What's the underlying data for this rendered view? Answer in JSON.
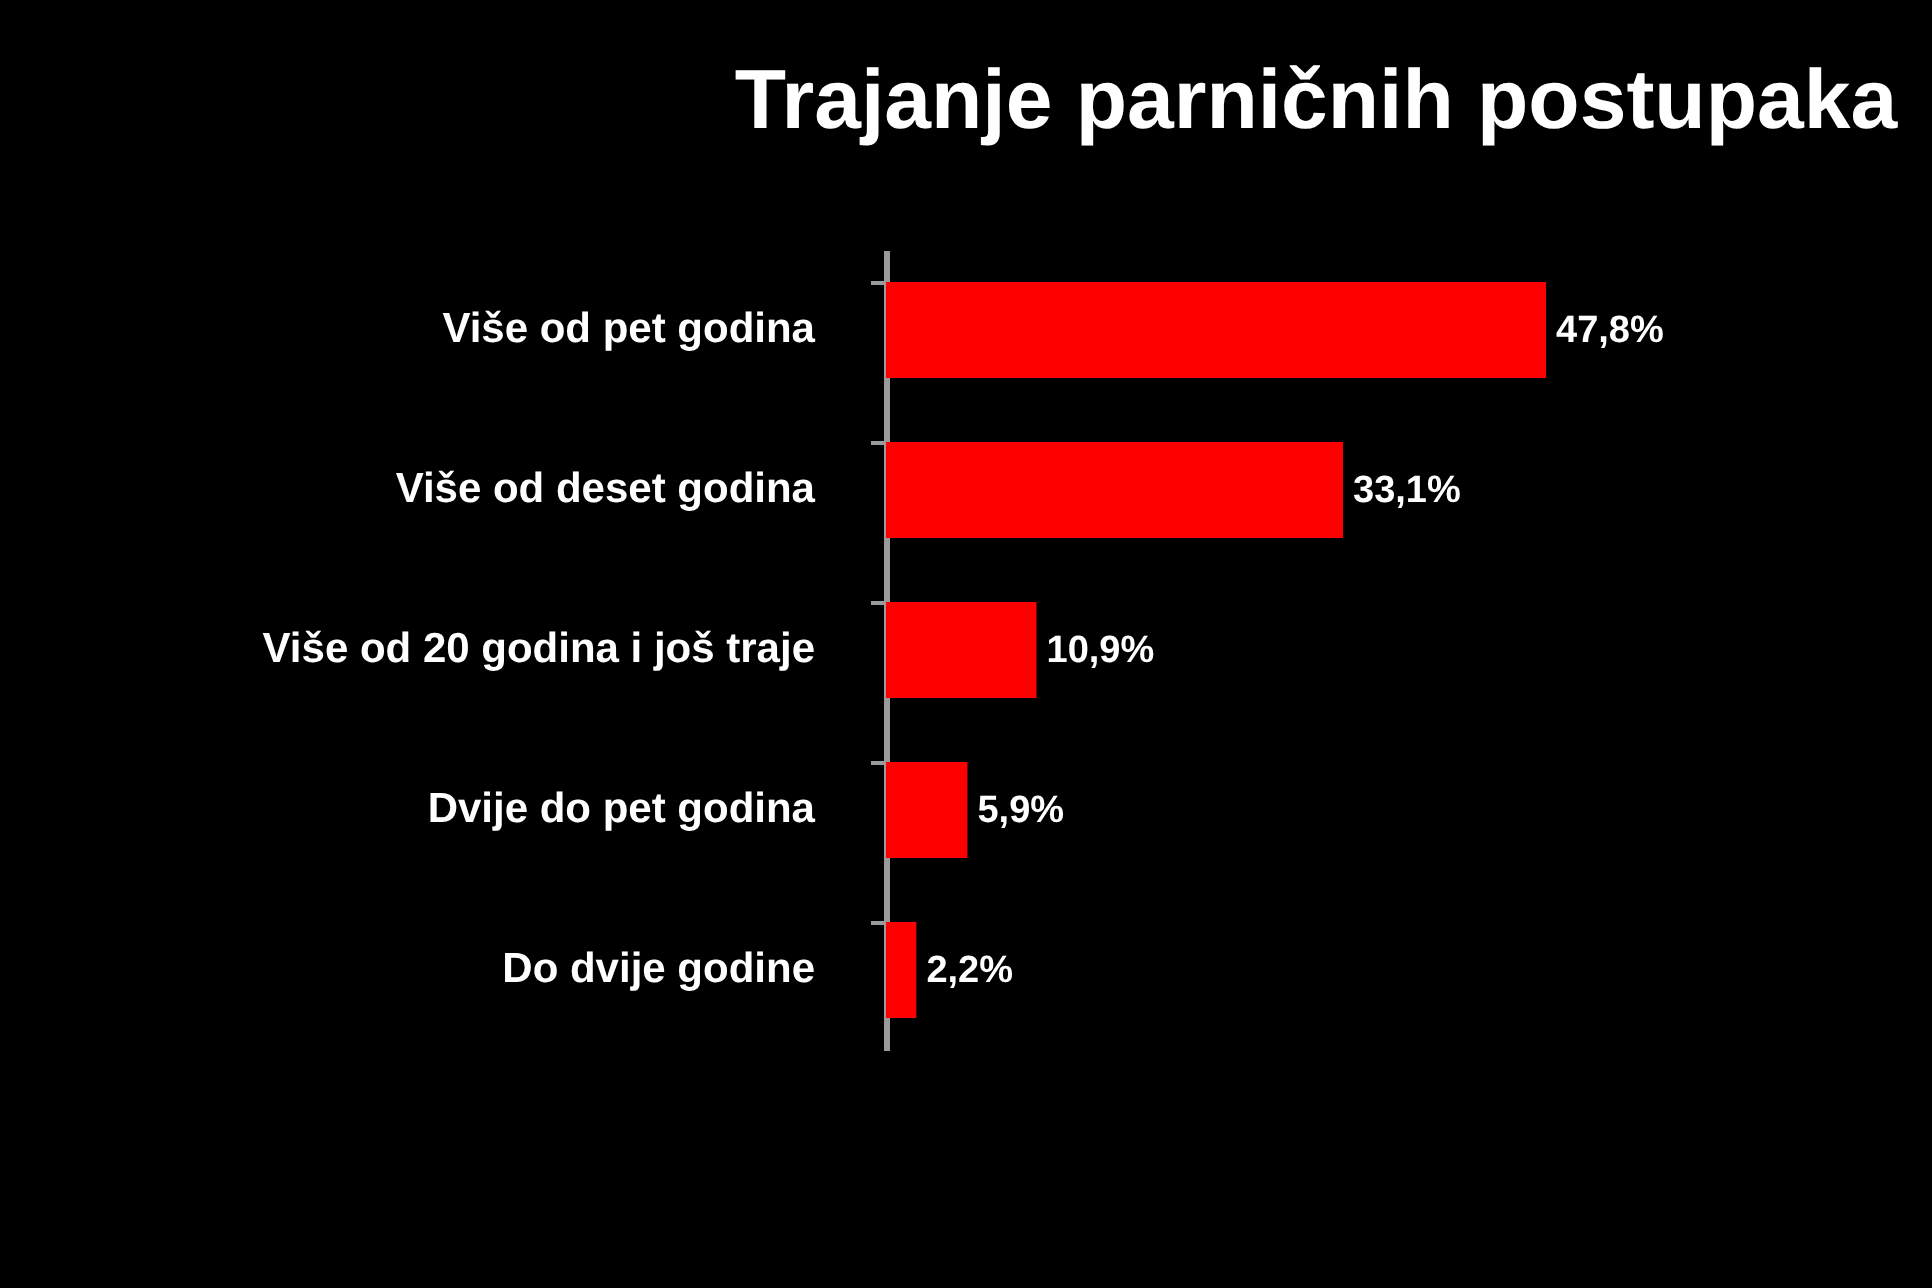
{
  "chart_data": {
    "type": "bar",
    "orientation": "horizontal",
    "title": "Trajanje parničnih postupaka",
    "categories": [
      "Više od pet godina",
      "Više od deset godina",
      "Više od 20 godina i još traje",
      "Dvije do pet godina",
      "Do dvije godine"
    ],
    "values": [
      47.8,
      33.1,
      10.9,
      5.9,
      2.2
    ],
    "value_labels": [
      "47,8%",
      "33,1%",
      "10,9%",
      "5,9%",
      "2,2%"
    ],
    "color": "#ff0000"
  }
}
